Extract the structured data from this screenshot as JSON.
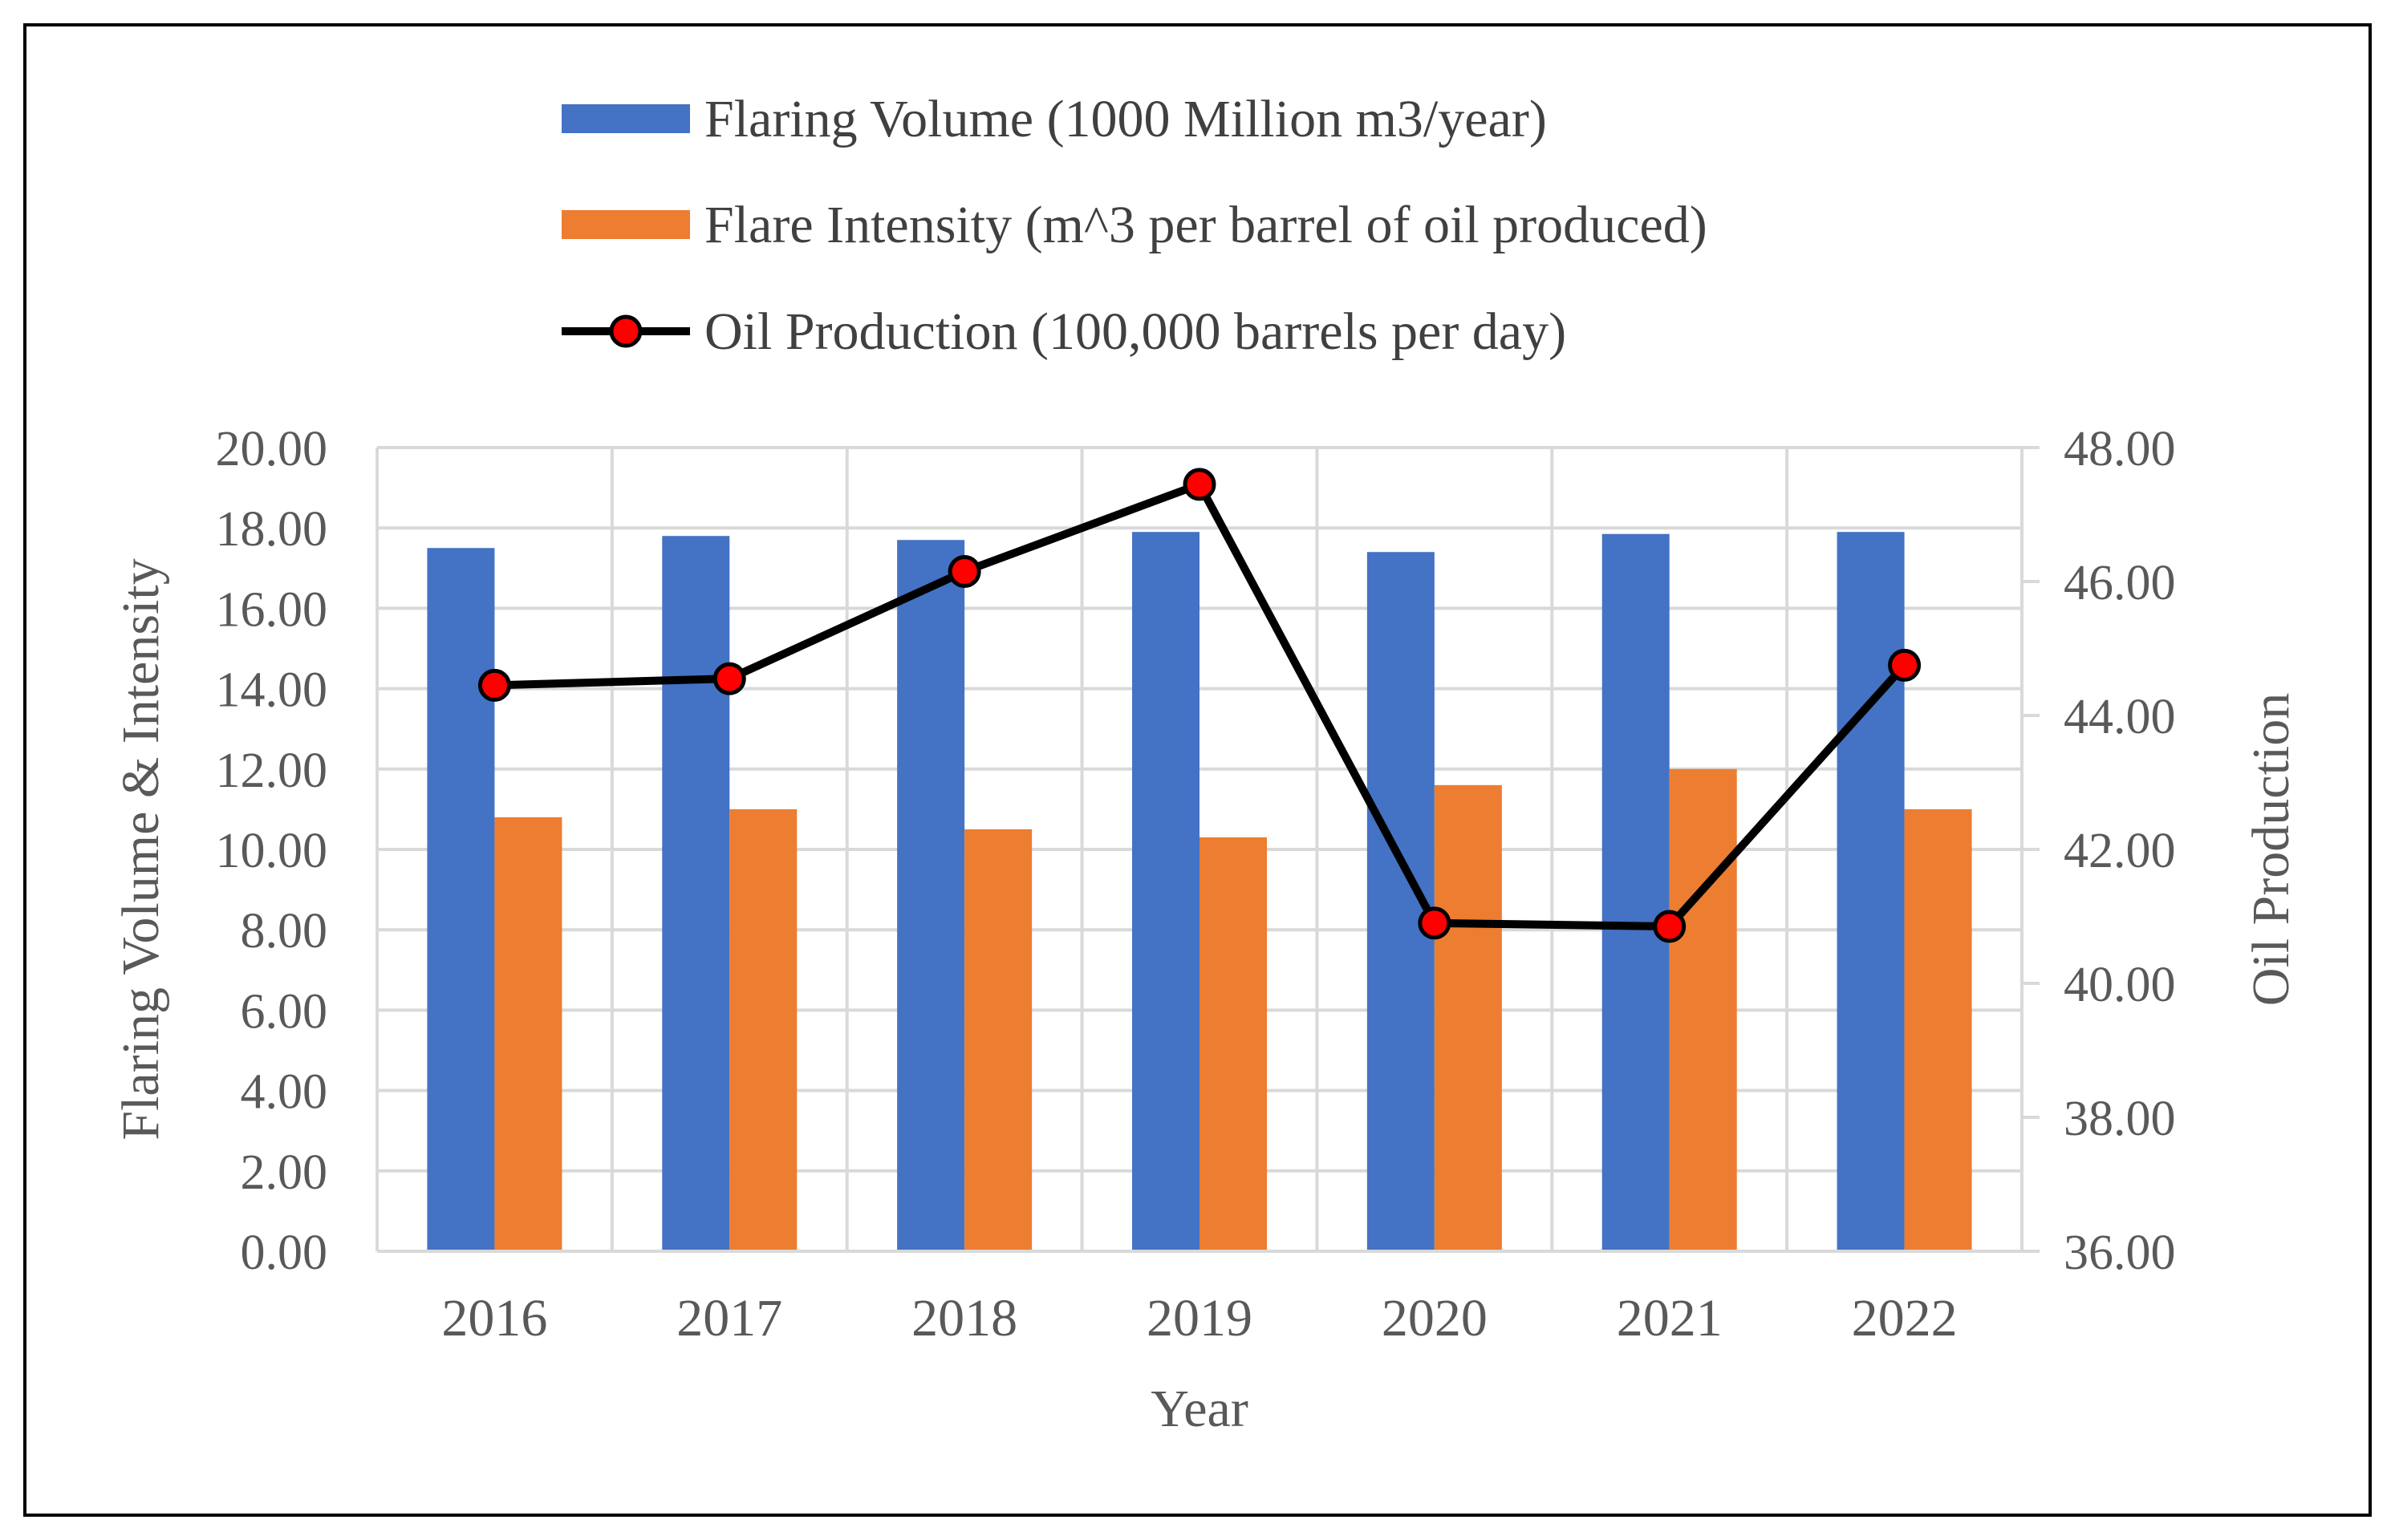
{
  "chart_data": {
    "type": "bar",
    "categories": [
      "2016",
      "2017",
      "2018",
      "2019",
      "2020",
      "2021",
      "2022"
    ],
    "series": [
      {
        "name": "Flaring Volume (1000 Million m3/year)",
        "kind": "bar",
        "axis": "left",
        "color": "#4472C4",
        "values": [
          17.5,
          17.8,
          17.7,
          17.9,
          17.4,
          17.85,
          17.9
        ]
      },
      {
        "name": "Flare Intensity (m^3 per barrel of oil produced)",
        "kind": "bar",
        "axis": "left",
        "color": "#ED7D31",
        "values": [
          10.8,
          11.0,
          10.5,
          10.3,
          11.6,
          12.0,
          11.0
        ]
      },
      {
        "name": "Oil Production (100,000 barrels per day)",
        "kind": "line",
        "axis": "right",
        "color": "#000000",
        "marker_color": "#FF0000",
        "values": [
          44.45,
          44.55,
          46.15,
          47.45,
          40.9,
          40.85,
          44.75
        ]
      }
    ],
    "xlabel": "Year",
    "ylabel": "Flaring Volume & Intensity",
    "y2label": "Oil Production",
    "ylim": [
      0,
      20
    ],
    "y2lim": [
      36,
      48
    ],
    "yticks": [
      "0.00",
      "2.00",
      "4.00",
      "6.00",
      "8.00",
      "10.00",
      "12.00",
      "14.00",
      "16.00",
      "18.00",
      "20.00"
    ],
    "y2ticks": [
      "36.00",
      "38.00",
      "40.00",
      "42.00",
      "44.00",
      "46.00",
      "48.00"
    ],
    "grid": true,
    "legend_position": "top"
  }
}
